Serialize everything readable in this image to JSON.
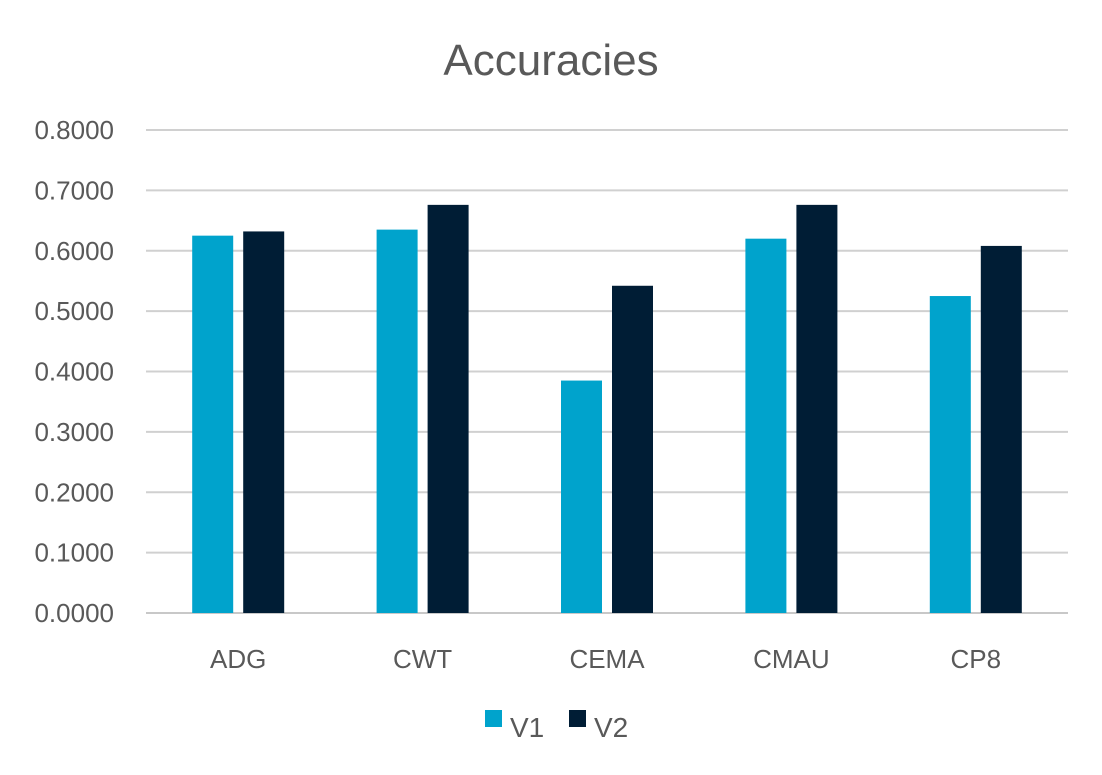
{
  "chart_data": {
    "type": "bar",
    "title": "Accuracies",
    "xlabel": "",
    "ylabel": "",
    "categories": [
      "ADG",
      "CWT",
      "CEMA",
      "CMAU",
      "CP8"
    ],
    "series": [
      {
        "name": "V1",
        "color": "#00A3CC",
        "values": [
          0.625,
          0.635,
          0.385,
          0.62,
          0.525
        ]
      },
      {
        "name": "V2",
        "color": "#001D35",
        "values": [
          0.632,
          0.676,
          0.542,
          0.676,
          0.608
        ]
      }
    ],
    "ylim": [
      0,
      0.8
    ],
    "yticks": [
      0,
      0.1,
      0.2,
      0.3,
      0.4,
      0.5,
      0.6,
      0.7,
      0.8
    ],
    "ytick_labels": [
      "0.0000",
      "0.1000",
      "0.2000",
      "0.3000",
      "0.4000",
      "0.5000",
      "0.6000",
      "0.7000",
      "0.8000"
    ],
    "grid": true,
    "legend_position": "bottom-center"
  }
}
